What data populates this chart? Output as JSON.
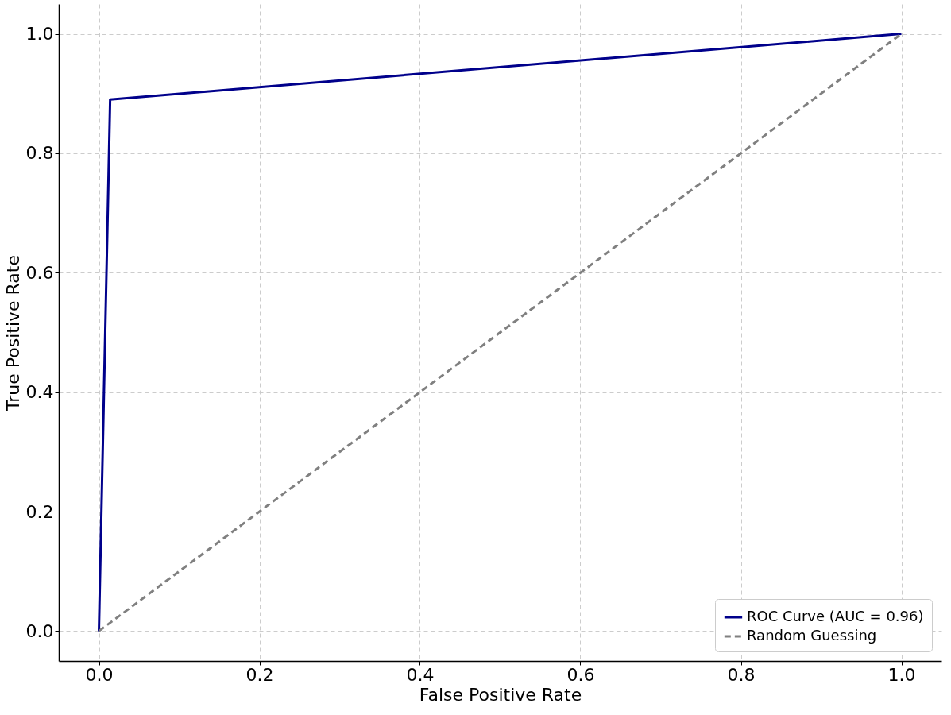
{
  "chart_data": {
    "type": "line",
    "xlabel": "False Positive Rate",
    "ylabel": "True Positive Rate",
    "series": [
      {
        "name": "ROC Curve (AUC = 0.96)",
        "color": "#00008b",
        "x": [
          0,
          0.014,
          1
        ],
        "values": [
          0,
          0.89,
          1
        ],
        "line_style": "solid"
      },
      {
        "name": "Random Guessing",
        "color": "#808080",
        "x": [
          0,
          1
        ],
        "values": [
          0,
          1
        ],
        "line_style": "dashed"
      }
    ],
    "xlim": [
      -0.05,
      1.05
    ],
    "ylim": [
      -0.05,
      1.05
    ],
    "xticks": [
      {
        "value": 0,
        "label": "0.0"
      },
      {
        "value": 0.2,
        "label": "0.2"
      },
      {
        "value": 0.4,
        "label": "0.4"
      },
      {
        "value": 0.6,
        "label": "0.6"
      },
      {
        "value": 0.8,
        "label": "0.8"
      },
      {
        "value": 1,
        "label": "1.0"
      }
    ],
    "yticks": [
      {
        "value": 0,
        "label": "0.0"
      },
      {
        "value": 0.2,
        "label": "0.2"
      },
      {
        "value": 0.4,
        "label": "0.4"
      },
      {
        "value": 0.6,
        "label": "0.6"
      },
      {
        "value": 0.8,
        "label": "0.8"
      },
      {
        "value": 1,
        "label": "1.0"
      }
    ],
    "grid": true,
    "legend": "bottom right",
    "marker": "none"
  }
}
